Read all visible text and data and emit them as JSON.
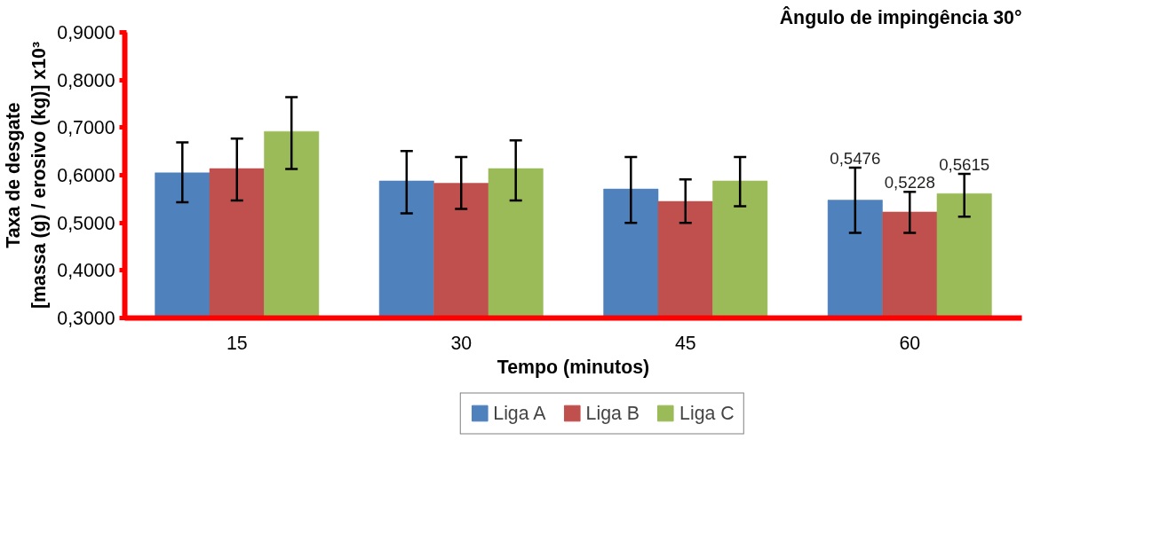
{
  "chart_data": {
    "type": "bar",
    "title": "Ângulo de impingência 30°",
    "xlabel": "Tempo (minutos)",
    "ylabel": "Taxa de desgate\n[massa (g) / erosivo (kg)] x10³",
    "categories": [
      "15",
      "30",
      "45",
      "60"
    ],
    "series": [
      {
        "name": "Liga A",
        "color": "#4f81bd",
        "values": [
          0.605,
          0.588,
          0.571,
          0.5476
        ],
        "errors": [
          [
            0.543,
            0.669
          ],
          [
            0.52,
            0.651
          ],
          [
            0.5,
            0.638
          ],
          [
            0.479,
            0.616
          ]
        ],
        "value_labels": [
          null,
          null,
          null,
          "0,5476"
        ]
      },
      {
        "name": "Liga B",
        "color": "#c0504d",
        "values": [
          0.614,
          0.583,
          0.545,
          0.5228
        ],
        "errors": [
          [
            0.547,
            0.677
          ],
          [
            0.529,
            0.638
          ],
          [
            0.5,
            0.591
          ],
          [
            0.479,
            0.565
          ]
        ],
        "value_labels": [
          null,
          null,
          null,
          "0,5228"
        ]
      },
      {
        "name": "Liga C",
        "color": "#9bbb59",
        "values": [
          0.692,
          0.614,
          0.588,
          0.5615
        ],
        "errors": [
          [
            0.613,
            0.764
          ],
          [
            0.547,
            0.673
          ],
          [
            0.535,
            0.638
          ],
          [
            0.513,
            0.603
          ]
        ],
        "value_labels": [
          null,
          null,
          null,
          "0,5615"
        ]
      }
    ],
    "ylim": [
      0.3,
      0.9
    ],
    "yticks": [
      {
        "value": 0.3,
        "label": "0,3000"
      },
      {
        "value": 0.4,
        "label": "0,4000"
      },
      {
        "value": 0.5,
        "label": "0,5000"
      },
      {
        "value": 0.6,
        "label": "0,6000"
      },
      {
        "value": 0.7,
        "label": "0,7000"
      },
      {
        "value": 0.8,
        "label": "0,8000"
      },
      {
        "value": 0.9,
        "label": "0,9000"
      }
    ],
    "grid": false,
    "legend": "bottom"
  }
}
